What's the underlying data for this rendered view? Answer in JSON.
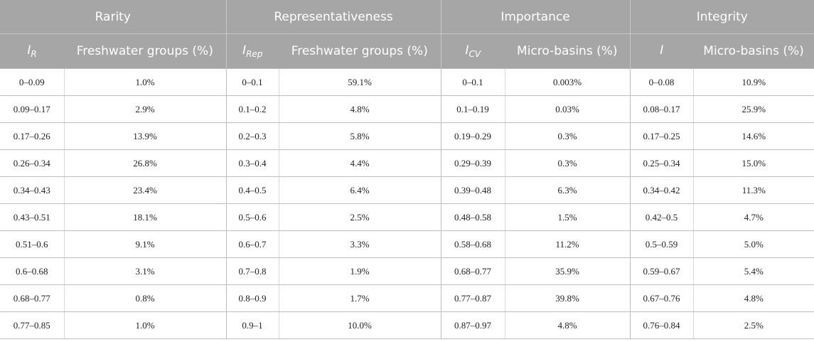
{
  "table": {
    "groups": [
      {
        "label": "Rarity",
        "symbol": "I",
        "symbol_sub": "R",
        "value_header": "Freshwater groups (%)"
      },
      {
        "label": "Representativeness",
        "symbol": "I",
        "symbol_sub": "Rep",
        "value_header": "Freshwater groups (%)"
      },
      {
        "label": "Importance",
        "symbol": "I",
        "symbol_sub": "CV",
        "value_header": "Micro-basins (%)"
      },
      {
        "label": "Integrity",
        "symbol": "I",
        "symbol_sub": "",
        "value_header": "Micro-basins (%)"
      }
    ],
    "rows": [
      [
        "0–0.09",
        "1.0%",
        "0–0.1",
        "59.1%",
        "0–0.1",
        "0.003%",
        "0–0.08",
        "10.9%"
      ],
      [
        "0.09–0.17",
        "2.9%",
        "0.1–0.2",
        "4.8%",
        "0.1–0.19",
        "0.03%",
        "0.08–0.17",
        "25.9%"
      ],
      [
        "0.17–0.26",
        "13.9%",
        "0.2–0.3",
        "5.8%",
        "0.19–0.29",
        "0.3%",
        "0.17–0.25",
        "14.6%"
      ],
      [
        "0.26–0.34",
        "26.8%",
        "0.3–0.4",
        "4.4%",
        "0.29–0.39",
        "0.3%",
        "0.25–0.34",
        "15.0%"
      ],
      [
        "0.34–0.43",
        "23.4%",
        "0.4–0.5",
        "6.4%",
        "0.39–0.48",
        "6.3%",
        "0.34–0.42",
        "11.3%"
      ],
      [
        "0.43–0.51",
        "18.1%",
        "0.5–0.6",
        "2.5%",
        "0.48–0.58",
        "1.5%",
        "0.42–0.5",
        "4.7%"
      ],
      [
        "0.51–0.6",
        "9.1%",
        "0.6–0.7",
        "3.3%",
        "0.58–0.68",
        "11.2%",
        "0.5–0.59",
        "5.0%"
      ],
      [
        "0.6–0.68",
        "3.1%",
        "0.7–0.8",
        "1.9%",
        "0.68–0.77",
        "35.9%",
        "0.59–0.67",
        "5.4%"
      ],
      [
        "0.68–0.77",
        "0.8%",
        "0.8–0.9",
        "1.7%",
        "0.77–0.87",
        "39.8%",
        "0.67–0.76",
        "4.8%"
      ],
      [
        "0.77–0.85",
        "1.0%",
        "0.9–1",
        "10.0%",
        "0.87–0.97",
        "4.8%",
        "0.76–0.84",
        "2.5%"
      ]
    ]
  }
}
